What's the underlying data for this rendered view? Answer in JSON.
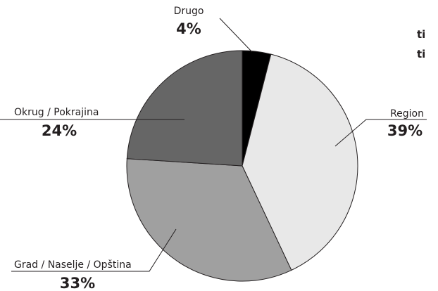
{
  "cut_text": [
    "ti",
    "ti"
  ],
  "chart_data": {
    "type": "pie",
    "title": "",
    "start": "top",
    "direction": "clockwise",
    "slices": [
      {
        "label": "Drugo",
        "value": 4,
        "value_label": "4%",
        "color": "#000000"
      },
      {
        "label": "Region",
        "value": 39,
        "value_label": "39%",
        "color": "#e8e8e8"
      },
      {
        "label": "Grad / Naselje / Opština",
        "value": 33,
        "value_label": "33%",
        "color": "#a0a0a0"
      },
      {
        "label": "Okrug / Pokrajina",
        "value": 24,
        "value_label": "24%",
        "color": "#666666"
      }
    ]
  }
}
